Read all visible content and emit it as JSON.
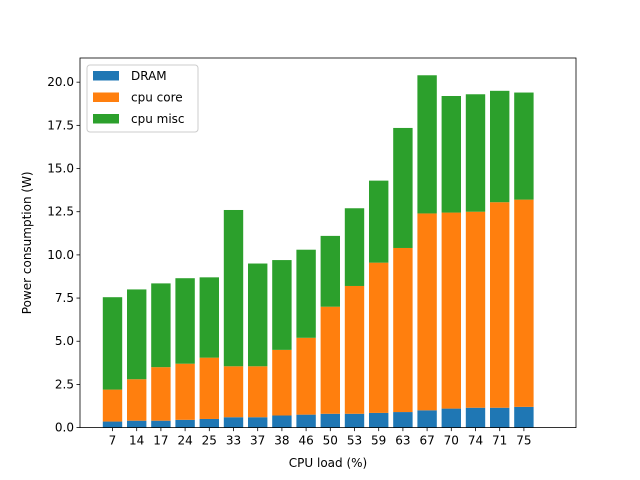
{
  "chart_data": {
    "type": "bar",
    "stacked": true,
    "xlabel": "CPU load (%)",
    "ylabel": "Power consumption (W)",
    "ylim": [
      0,
      21.4
    ],
    "yticks": [
      0.0,
      2.5,
      5.0,
      7.5,
      10.0,
      12.5,
      15.0,
      17.5,
      20.0
    ],
    "ytick_labels": [
      "0.0",
      "2.5",
      "5.0",
      "7.5",
      "10.0",
      "12.5",
      "15.0",
      "17.5",
      "20.0"
    ],
    "categories": [
      "7",
      "14",
      "17",
      "24",
      "25",
      "33",
      "37",
      "38",
      "46",
      "50",
      "53",
      "59",
      "63",
      "67",
      "70",
      "74",
      "71",
      "75"
    ],
    "legend_position": "upper-left",
    "grid": false,
    "series": [
      {
        "name": "DRAM",
        "color": "#1f77b4",
        "values": [
          0.35,
          0.4,
          0.4,
          0.45,
          0.5,
          0.6,
          0.6,
          0.7,
          0.75,
          0.8,
          0.8,
          0.85,
          0.9,
          1.0,
          1.1,
          1.15,
          1.15,
          1.2
        ]
      },
      {
        "name": "cpu core",
        "color": "#ff7f0e",
        "values": [
          1.85,
          2.4,
          3.1,
          3.25,
          3.55,
          2.95,
          2.95,
          3.8,
          4.45,
          6.2,
          7.4,
          8.7,
          9.5,
          11.4,
          11.35,
          11.35,
          11.9,
          12.0
        ]
      },
      {
        "name": "cpu misc",
        "color": "#2ca02c",
        "values": [
          5.35,
          5.2,
          4.85,
          4.95,
          4.65,
          9.05,
          5.95,
          5.2,
          5.1,
          4.1,
          4.5,
          4.75,
          6.95,
          8.0,
          6.75,
          6.8,
          6.45,
          6.2
        ]
      }
    ]
  }
}
